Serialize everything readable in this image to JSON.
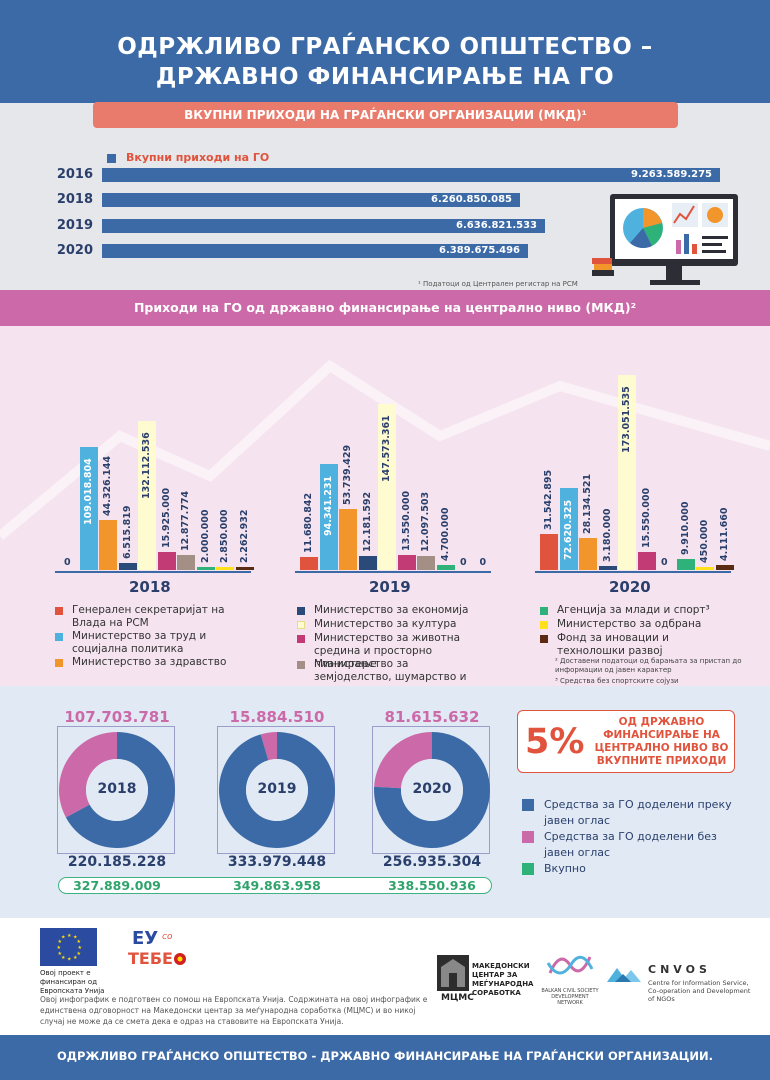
{
  "header": {
    "title_line1": "ОДРЖЛИВО ГРАЃАНСКО ОПШТЕСТВО –",
    "title_line2": "ДРЖАВНО ФИНАНСИРАЊЕ НА ГО"
  },
  "section1": {
    "banner": "ВКУПНИ ПРИХОДИ НА ГРАЃАНСКИ ОРГАНИЗАЦИИ (МКД)¹",
    "legend": "Вкупни приходи на ГО",
    "footnote": "¹ Податоци од Централен регистар на РСМ"
  },
  "section2": {
    "banner": "Приходи на ГО од државно финансирање на централно ниво  (МКД)²",
    "legend": [
      {
        "label": "Генерален секретаријат на Влада на РСМ",
        "color": "#e0533c"
      },
      {
        "label": "Министерство за труд и социјална политика",
        "color": "#4fb2de"
      },
      {
        "label": "Министерство за здравство",
        "color": "#f2952a"
      },
      {
        "label": "Министерство за економија",
        "color": "#2a4a7a"
      },
      {
        "label": "Министерство за култура",
        "color": "#fffbd0"
      },
      {
        "label": "Министерство за животна средина и просторно планирање",
        "color": "#c23b74"
      },
      {
        "label": "Министерство за земјоделство, шумарство и водостопанство",
        "color": "#a48f86"
      },
      {
        "label": "Агенција за млади и спорт³",
        "color": "#2fb27a"
      },
      {
        "label": "Министерство за одбрана",
        "color": "#ffe01a"
      },
      {
        "label": "Фонд за иновации и технолошки развој",
        "color": "#5a2a12"
      }
    ],
    "footnote2": "² Доставени податоци од барањата за пристап до информации од јавен карактер",
    "footnote3": "³ Средства без спортските сојузи"
  },
  "section3": {
    "pct_value": "5%",
    "pct_text": "ОД ДРЖАВНО ФИНАНСИРАЊЕ НА ЦЕНТРАЛНО НИВО ВО ВКУПНИТЕ ПРИХОДИ",
    "legend": [
      {
        "label": "Средства за ГО доделени преку јавен оглас",
        "color": "#3b6aa6"
      },
      {
        "label": "Средства за ГО доделени без јавен оглас",
        "color": "#cc6aa9"
      },
      {
        "label": "Вкупно",
        "color": "#2fb27a"
      }
    ],
    "donuts": [
      {
        "year": "2018",
        "without_label": "107.703.781",
        "with_label": "220.185.228",
        "total_label": "327.889.009",
        "without_value": 107703781,
        "with_value": 220185228
      },
      {
        "year": "2019",
        "without_label": "15.884.510",
        "with_label": "333.979.448",
        "total_label": "349.863.958",
        "without_value": 15884510,
        "with_value": 333979448
      },
      {
        "year": "2020",
        "without_label": "81.615.632",
        "with_label": "256.935.304",
        "total_label": "338.550.936",
        "without_value": 81615632,
        "with_value": 256935304
      }
    ]
  },
  "footer": {
    "eu_caption": "Овој проект е финансиран од Европската Унија",
    "eu_co_logo": "ЕУ со ТЕБЕ",
    "disclaimer": "Овој инфографик е подготвен со помош на Европската Унија. Содржината на овој инфографик е единствена одговорност на Македонски центар за меѓународна соработка (МЦМС) и во никој случај не може да се смета дека е одраз на ставовите на Европската Унија.",
    "mcms_abbr": "МЦМС",
    "mcms_text": "МАКЕДОНСКИ ЦЕНТАР ЗА МЕЃУНАРОДНА СОРАБОТКА",
    "balkan_text": "BALKAN CIVIL SOCIETY DEVELOPMENT NETWORK",
    "cnvos_name": "CNVOS",
    "cnvos_text": "Centre for Information Service, Co-operation and Development of NGOs",
    "bottom_text": "ОДРЖЛИВО ГРАЃАНСКО ОПШТЕСТВО - ДРЖАВНО ФИНАНСИРАЊЕ НА ГРАЃАНСКИ ОРГАНИЗАЦИИ."
  },
  "chart_data": [
    {
      "type": "bar",
      "orientation": "horizontal",
      "title": "ВКУПНИ ПРИХОДИ НА ГРАЃАНСКИ ОРГАНИЗАЦИИ (МКД)¹",
      "categories": [
        "2016",
        "2018",
        "2019",
        "2020"
      ],
      "series": [
        {
          "name": "Вкупни приходи на ГО",
          "values": [
            9263589275,
            6260850085,
            6636821533,
            6389675496
          ],
          "labels": [
            "9.263.589.275",
            "6.260.850.085",
            "6.636.821.533",
            "6.389.675.496"
          ]
        }
      ]
    },
    {
      "type": "bar",
      "title": "Приходи на ГО од државно финансирање на централно ниво  (МКД)²",
      "categories": [
        "2018",
        "2019",
        "2020"
      ],
      "series": [
        {
          "name": "Генерален секретаријат на Влада на РСМ",
          "values": [
            0,
            11680842,
            31542895
          ],
          "labels": [
            "0",
            "11.680.842",
            "31.542.895"
          ]
        },
        {
          "name": "Министерство за труд и социјална политика",
          "values": [
            109018804,
            94341231,
            72620325
          ],
          "labels": [
            "109.018.804",
            "94.341.231",
            "72.620.325"
          ]
        },
        {
          "name": "Министерство за здравство",
          "values": [
            44326144,
            53739429,
            28134521
          ],
          "labels": [
            "44.326.144",
            "53.739.429",
            "28.134.521"
          ]
        },
        {
          "name": "Министерство за економија",
          "values": [
            6515819,
            12181592,
            3180000
          ],
          "labels": [
            "6.515.819",
            "12.181.592",
            "3.180.000"
          ]
        },
        {
          "name": "Министерство за култура",
          "values": [
            132112536,
            147573361,
            173051535
          ],
          "labels": [
            "132.112.536",
            "147.573.361",
            "173.051.535"
          ]
        },
        {
          "name": "Министерство за животна средина и просторно планирање",
          "values": [
            15925000,
            13550000,
            15550000
          ],
          "labels": [
            "15.925.000",
            "13.550.000",
            "15.550.000"
          ]
        },
        {
          "name": "Министерство за земјоделство, шумарство и водостопанство",
          "values": [
            12877774,
            12097503,
            0
          ],
          "labels": [
            "12.877.774",
            "12.097.503",
            "0"
          ]
        },
        {
          "name": "Агенција за млади и спорт³",
          "values": [
            2000000,
            4700000,
            9910000
          ],
          "labels": [
            "2.000.000",
            "4.700.000",
            "9.910.000"
          ]
        },
        {
          "name": "Министерство за одбрана",
          "values": [
            2850000,
            0,
            450000
          ],
          "labels": [
            "2.850.000",
            "0",
            "450.000"
          ]
        },
        {
          "name": "Фонд за иновации и технолошки развој",
          "values": [
            2262932,
            0,
            4111660
          ],
          "labels": [
            "2.262.932",
            "0",
            "4.111.660"
          ]
        }
      ]
    },
    {
      "type": "pie",
      "categories": [
        "Средства за ГО доделени преку јавен оглас",
        "Средства за ГО доделени без јавен оглас"
      ],
      "series": [
        {
          "name": "2018",
          "values": [
            220185228,
            107703781
          ]
        },
        {
          "name": "2019",
          "values": [
            333979448,
            15884510
          ]
        },
        {
          "name": "2020",
          "values": [
            256935304,
            81615632
          ]
        }
      ]
    }
  ]
}
